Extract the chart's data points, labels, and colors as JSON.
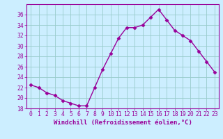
{
  "x": [
    0,
    1,
    2,
    3,
    4,
    5,
    6,
    7,
    8,
    9,
    10,
    11,
    12,
    13,
    14,
    15,
    16,
    17,
    18,
    19,
    20,
    21,
    22,
    23
  ],
  "y": [
    22.5,
    22.0,
    21.0,
    20.5,
    19.5,
    19.0,
    18.5,
    18.5,
    22.0,
    25.5,
    28.5,
    31.5,
    33.5,
    33.5,
    34.0,
    35.5,
    37.0,
    35.0,
    33.0,
    32.0,
    31.0,
    29.0,
    27.0,
    25.0
  ],
  "line_color": "#990099",
  "marker": "D",
  "marker_size": 2.5,
  "bg_color": "#cceeff",
  "grid_color": "#99cccc",
  "xlabel": "Windchill (Refroidissement éolien,°C)",
  "xlabel_fontsize": 6.5,
  "tick_fontsize": 5.8,
  "ylim": [
    18,
    38
  ],
  "yticks": [
    18,
    20,
    22,
    24,
    26,
    28,
    30,
    32,
    34,
    36
  ],
  "xlim": [
    -0.5,
    23.5
  ],
  "linewidth": 1.0
}
